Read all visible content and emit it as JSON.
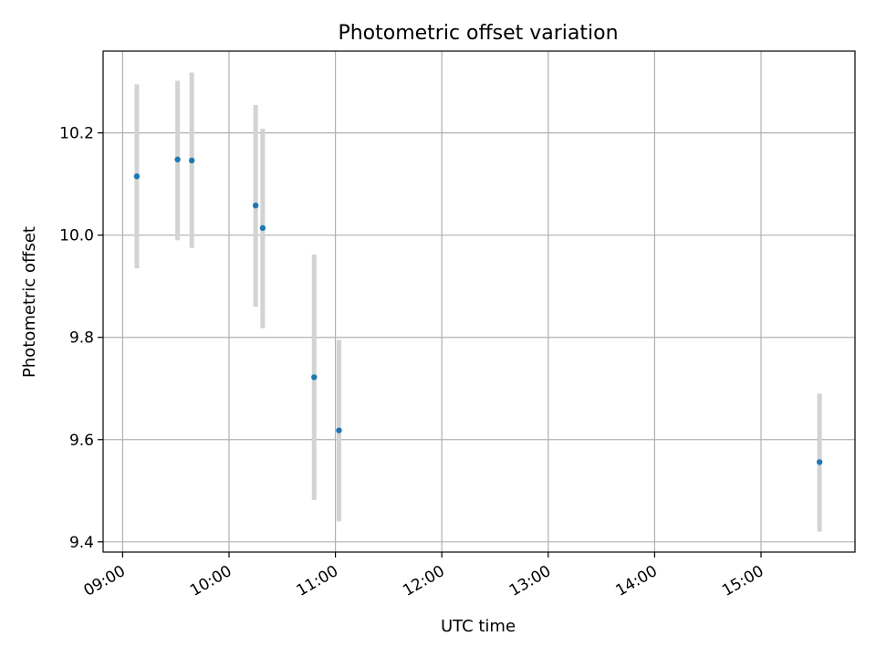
{
  "chart_data": {
    "type": "scatter",
    "title": "Photometric offset variation",
    "xlabel": "UTC time",
    "ylabel": "Photometric offset",
    "x_ticks": [
      "09:00",
      "10:00",
      "11:00",
      "12:00",
      "13:00",
      "14:00",
      "15:00"
    ],
    "y_ticks": [
      "9.4",
      "9.6",
      "9.8",
      "10.0",
      "10.2"
    ],
    "xlim": [
      "08:49",
      "15:53"
    ],
    "ylim": [
      9.38,
      10.36
    ],
    "grid": true,
    "points": [
      {
        "x": "09:08",
        "y": 10.115,
        "err_low": 9.935,
        "err_high": 10.295
      },
      {
        "x": "09:31",
        "y": 10.148,
        "err_low": 9.99,
        "err_high": 10.302
      },
      {
        "x": "09:39",
        "y": 10.146,
        "err_low": 9.975,
        "err_high": 10.318
      },
      {
        "x": "10:15",
        "y": 10.058,
        "err_low": 9.86,
        "err_high": 10.255
      },
      {
        "x": "10:19",
        "y": 10.014,
        "err_low": 9.818,
        "err_high": 10.208
      },
      {
        "x": "10:48",
        "y": 9.722,
        "err_low": 9.482,
        "err_high": 9.962
      },
      {
        "x": "11:02",
        "y": 9.618,
        "err_low": 9.44,
        "err_high": 9.795
      },
      {
        "x": "15:33",
        "y": 9.556,
        "err_low": 9.42,
        "err_high": 9.69
      }
    ],
    "colors": {
      "marker": "#1f77b4",
      "errorbar": "#d3d3d3",
      "grid": "#b0b0b0"
    }
  }
}
